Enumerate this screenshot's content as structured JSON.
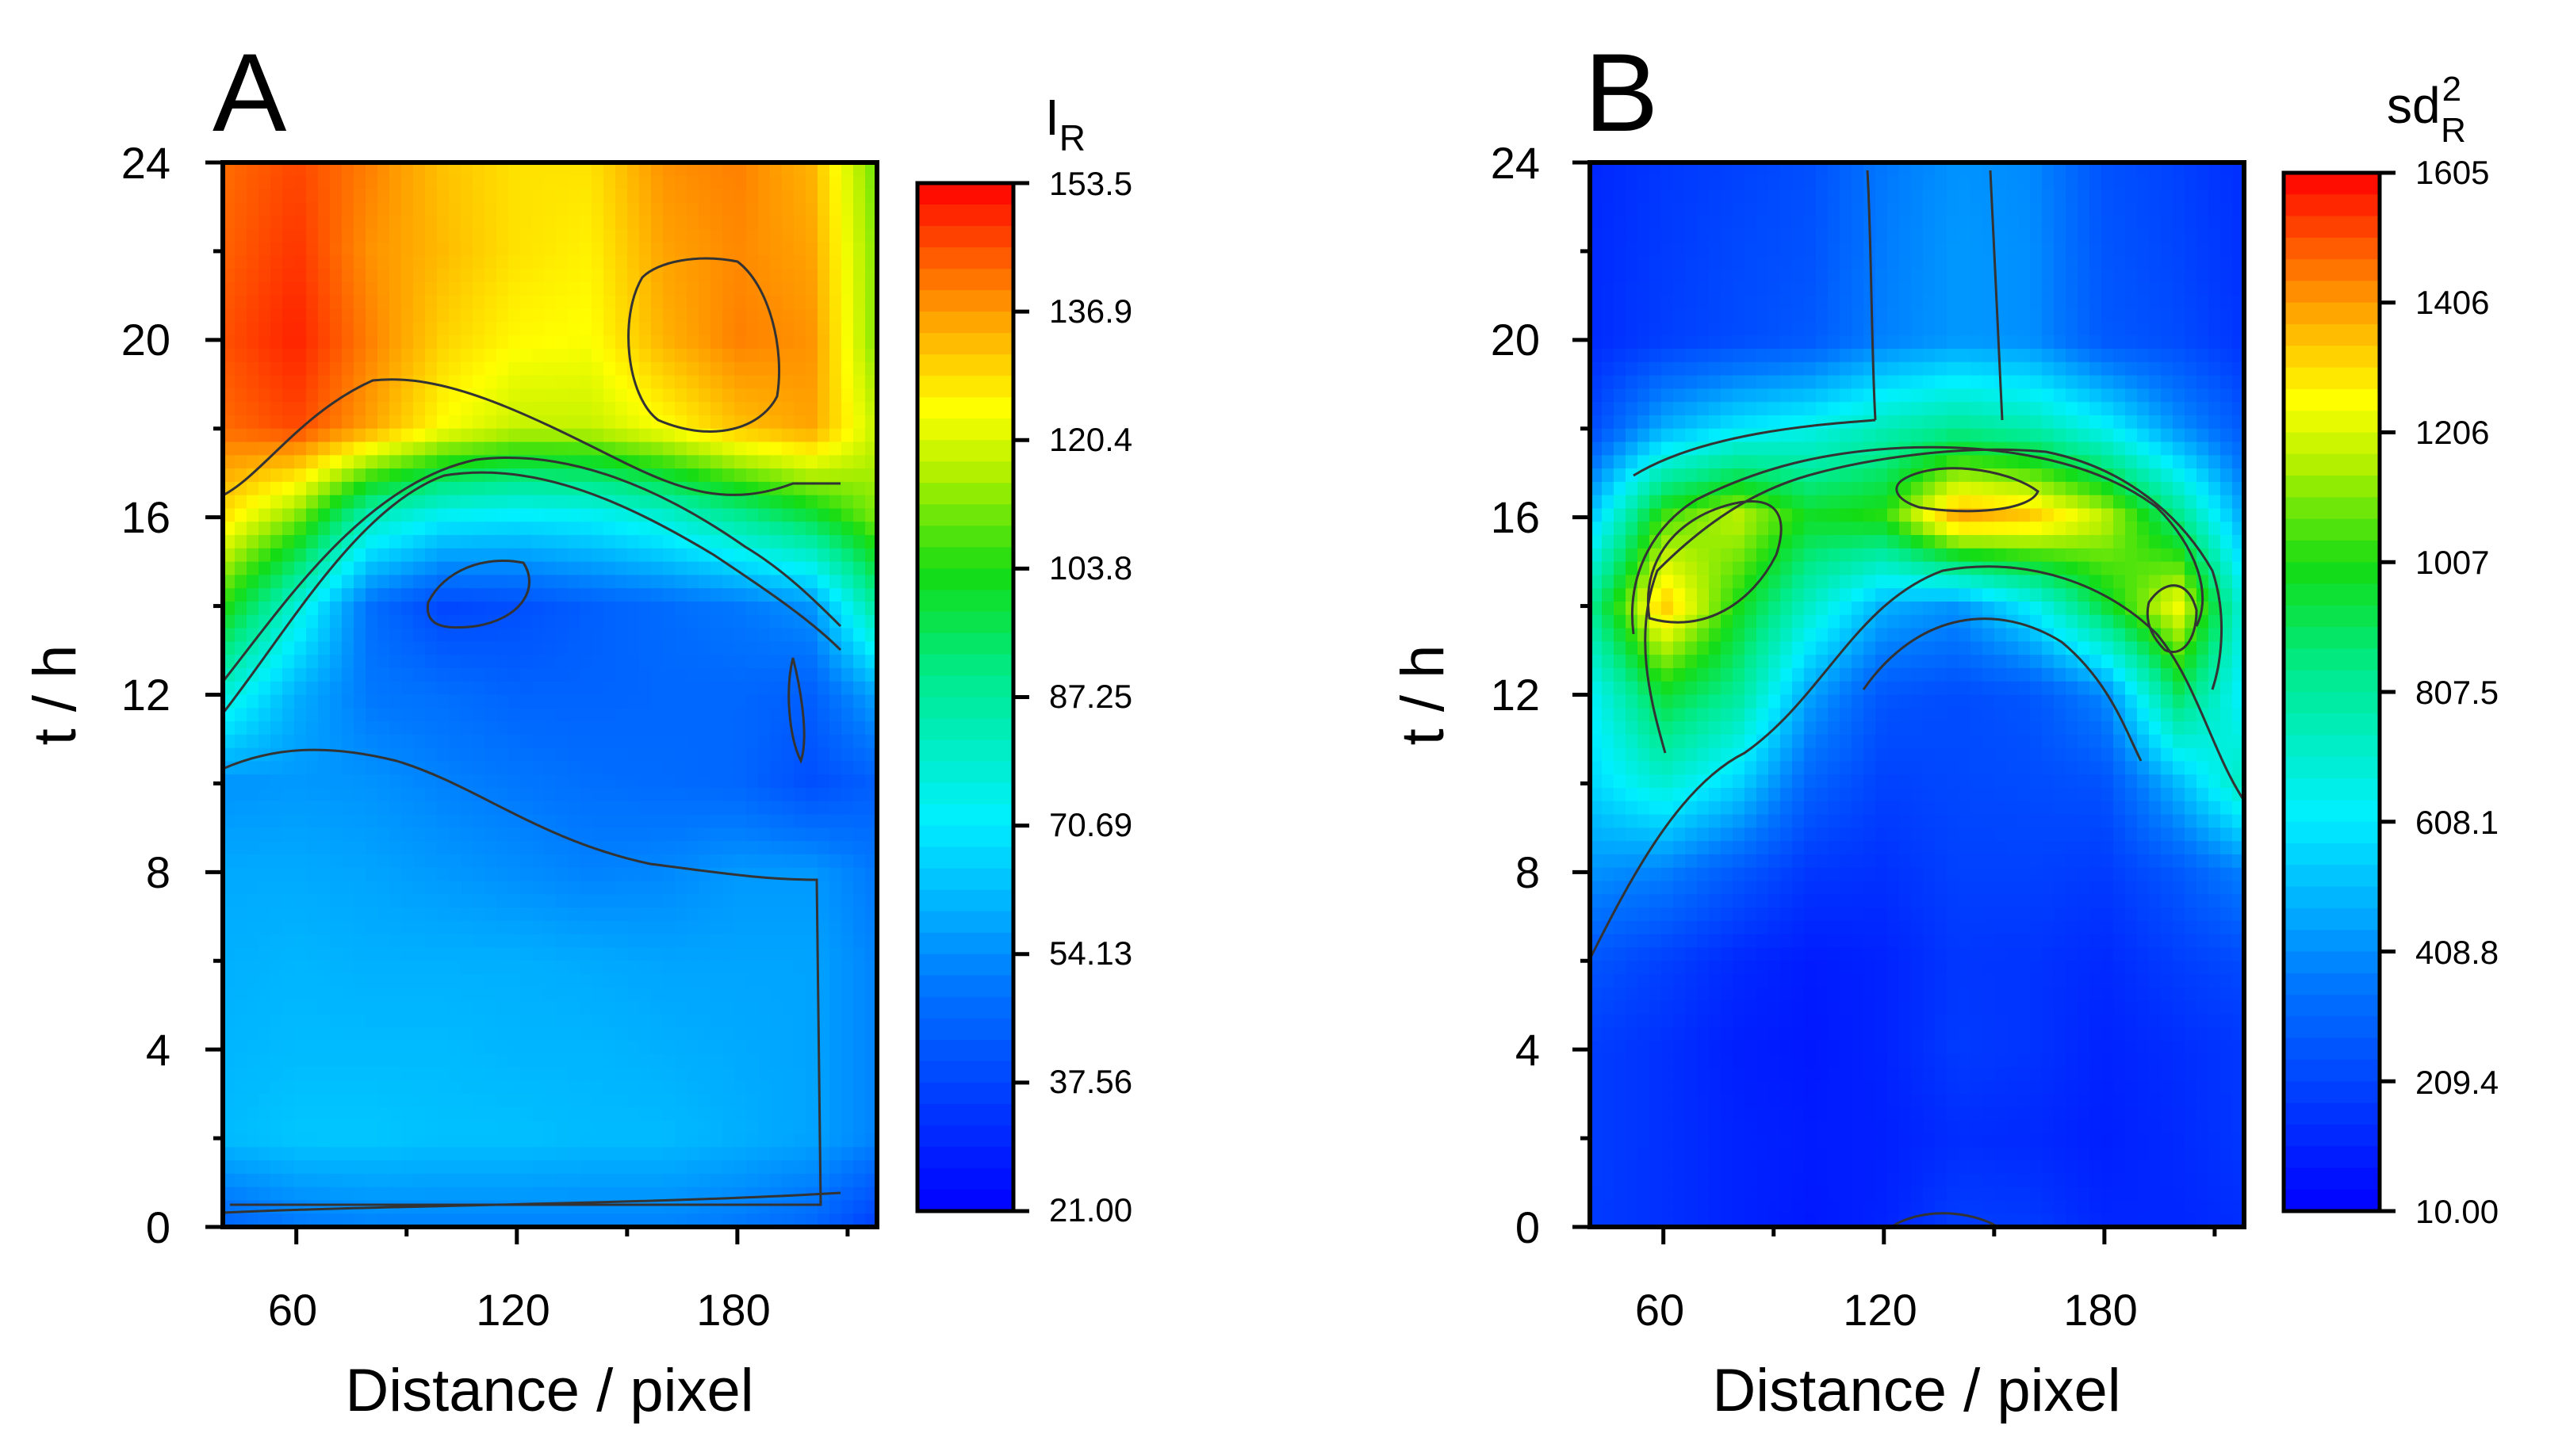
{
  "chart_data": [
    {
      "type": "heatmap",
      "panel_label": "A",
      "xlabel": "Distance / pixel",
      "ylabel": "t / h",
      "xticks": [
        60,
        120,
        180
      ],
      "yticks": [
        0,
        4,
        8,
        12,
        16,
        20,
        24
      ],
      "xlim": [
        40,
        218
      ],
      "ylim": [
        0,
        24
      ],
      "colorbar": {
        "title_main": "I",
        "title_sub": "R",
        "labels": [
          "153.5",
          "136.9",
          "120.4",
          "103.8",
          "87.25",
          "70.69",
          "54.13",
          "37.56",
          "21.00"
        ],
        "min": 21.0,
        "max": 153.5
      },
      "x": [
        40,
        60,
        80,
        100,
        120,
        140,
        160,
        180,
        200,
        218
      ],
      "y": [
        0,
        2,
        4,
        6,
        8,
        10,
        12,
        14,
        16,
        18,
        20,
        22,
        24
      ],
      "z": [
        [
          45,
          50,
          52,
          52,
          52,
          52,
          52,
          50,
          46,
          36
        ],
        [
          62,
          64,
          64,
          63,
          63,
          62,
          62,
          60,
          58,
          52
        ],
        [
          61,
          62,
          62,
          62,
          61,
          61,
          60,
          59,
          58,
          52
        ],
        [
          60,
          61,
          60,
          60,
          60,
          59,
          58,
          58,
          58,
          52
        ],
        [
          59,
          59,
          58,
          56,
          54,
          52,
          53,
          56,
          56,
          50
        ],
        [
          55,
          56,
          55,
          52,
          50,
          48,
          47,
          46,
          40,
          44
        ],
        [
          78,
          60,
          50,
          48,
          45,
          45,
          46,
          46,
          44,
          58
        ],
        [
          105,
          78,
          48,
          38,
          40,
          44,
          47,
          50,
          55,
          88
        ],
        [
          128,
          112,
          82,
          72,
          70,
          72,
          78,
          88,
          98,
          112
        ],
        [
          142,
          146,
          136,
          124,
          118,
          118,
          124,
          132,
          136,
          118
        ],
        [
          145,
          150,
          140,
          130,
          125,
          124,
          134,
          140,
          138,
          112
        ],
        [
          143,
          148,
          138,
          133,
          128,
          126,
          136,
          139,
          136,
          112
        ],
        [
          142,
          146,
          140,
          132,
          128,
          128,
          138,
          140,
          134,
          110
        ]
      ]
    },
    {
      "type": "heatmap",
      "panel_label": "B",
      "xlabel": "Distance / pixel",
      "ylabel": "t / h",
      "xticks": [
        60,
        120,
        180
      ],
      "yticks": [
        0,
        4,
        8,
        12,
        16,
        20,
        24
      ],
      "xlim": [
        40,
        218
      ],
      "ylim": [
        0,
        24
      ],
      "colorbar": {
        "title_main": "sd",
        "title_sup": "2",
        "title_sub": "R",
        "labels": [
          "1605",
          "1406",
          "1206",
          "1007",
          "807.5",
          "608.1",
          "408.8",
          "209.4",
          "10.00"
        ],
        "min": 10.0,
        "max": 1605
      },
      "x": [
        40,
        60,
        80,
        100,
        120,
        140,
        160,
        180,
        200,
        218
      ],
      "y": [
        0,
        2,
        4,
        6,
        8,
        10,
        12,
        14,
        16,
        18,
        20,
        22,
        24
      ],
      "z": [
        [
          180,
          150,
          110,
          80,
          110,
          190,
          180,
          120,
          120,
          140
        ],
        [
          190,
          150,
          110,
          90,
          100,
          140,
          130,
          100,
          130,
          170
        ],
        [
          190,
          150,
          100,
          80,
          110,
          180,
          160,
          110,
          140,
          170
        ],
        [
          260,
          200,
          130,
          90,
          110,
          170,
          160,
          130,
          190,
          230
        ],
        [
          420,
          380,
          270,
          170,
          150,
          200,
          200,
          180,
          270,
          380
        ],
        [
          560,
          700,
          560,
          300,
          200,
          220,
          230,
          250,
          500,
          750
        ],
        [
          620,
          960,
          820,
          450,
          260,
          230,
          260,
          390,
          900,
          600
        ],
        [
          820,
          1350,
          1000,
          720,
          480,
          420,
          620,
          950,
          1250,
          680
        ],
        [
          520,
          1050,
          1180,
          980,
          1020,
          1400,
          1350,
          1180,
          850,
          460
        ],
        [
          220,
          480,
          600,
          660,
          760,
          830,
          780,
          640,
          420,
          270
        ],
        [
          130,
          190,
          230,
          270,
          380,
          430,
          410,
          270,
          230,
          160
        ],
        [
          130,
          180,
          220,
          250,
          370,
          430,
          410,
          260,
          210,
          150
        ],
        [
          120,
          170,
          200,
          240,
          360,
          420,
          400,
          250,
          200,
          140
        ]
      ]
    }
  ]
}
